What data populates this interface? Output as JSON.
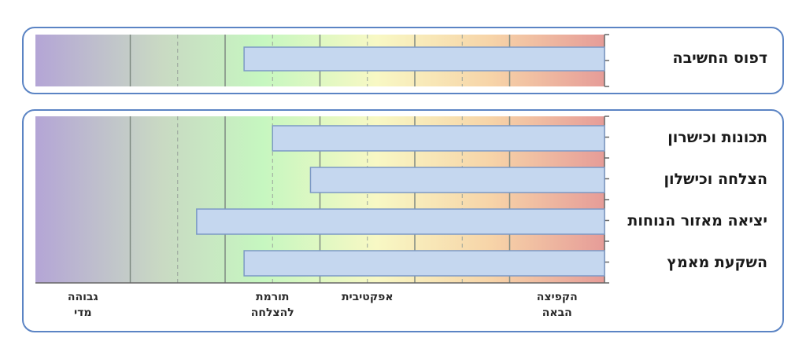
{
  "chart_data": {
    "type": "bar",
    "orientation": "horizontal",
    "direction": "right-to-left",
    "xlim": [
      0,
      6
    ],
    "zones": [
      {
        "label": "גבוהה\nמדי",
        "range": [
          5,
          6
        ]
      },
      {
        "label": "תורמת\nלהצלחה",
        "range": [
          3,
          4
        ]
      },
      {
        "label": "אפקטיבית",
        "range": [
          2,
          3
        ]
      },
      {
        "label": "הקפיצה\nהבאה",
        "range": [
          0,
          1
        ]
      }
    ],
    "groups": [
      {
        "name": "top",
        "bars": [
          {
            "label": "דפוס החשיבה",
            "value": 3.8
          }
        ]
      },
      {
        "name": "bottom",
        "bars": [
          {
            "label": "תכונות וכישרון",
            "value": 3.5
          },
          {
            "label": "הצלחה וכישלון",
            "value": 3.1
          },
          {
            "label": "יציאה מאזור הנוחות",
            "value": 4.3
          },
          {
            "label": "השקעת מאמץ",
            "value": 3.8
          }
        ]
      }
    ],
    "colors": {
      "gradient": [
        "#b4a5d6",
        "#c9d9c3",
        "#c6f7c0",
        "#f8f8c4",
        "#f7d4a8",
        "#e69c98"
      ],
      "bar_fill": "#c5d7ef",
      "bar_stroke": "#7c99c5",
      "panel_border": "#5b84c4"
    }
  }
}
